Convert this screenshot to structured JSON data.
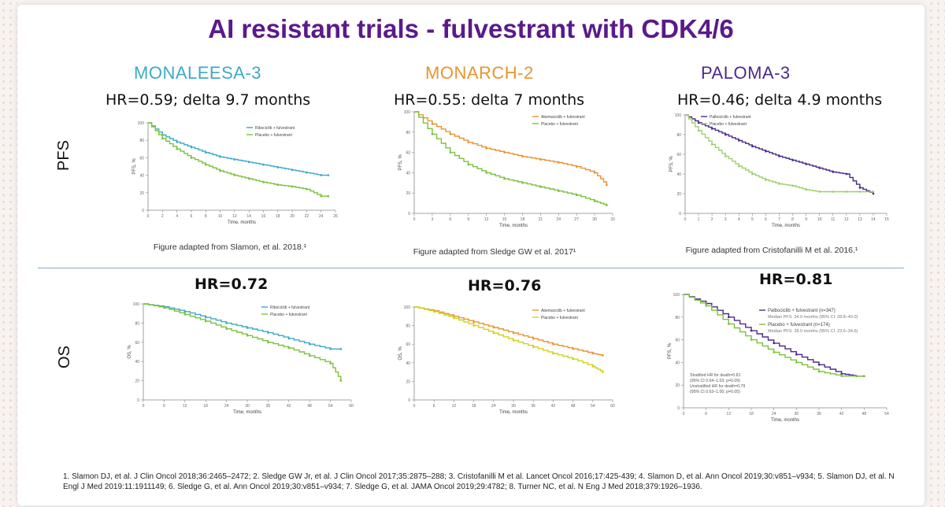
{
  "title": "AI resistant trials - fulvestrant with CDK4/6",
  "trials": [
    {
      "name": "MONALEESA-3",
      "color": "#3ea9c9"
    },
    {
      "name": "MONARCH-2",
      "color": "#e8942f"
    },
    {
      "name": "PALOMA-3",
      "color": "#4b2a8f"
    }
  ],
  "row_labels": {
    "pfs": "PFS",
    "os": "OS"
  },
  "hr": {
    "pfs": [
      "HR=0.59; delta 9.7 months",
      "HR=0.55: delta 7 months",
      "HR=0.46; delta 4.9 months"
    ],
    "os": [
      "HR=0.72",
      "HR=0.76",
      "HR=0.81"
    ]
  },
  "captions": [
    "Figure adapted from Slamon, et al. 2018.¹",
    "Figure adapted from Sledge GW et al. 2017¹",
    "Figure adapted from Cristofanilli M et al. 2016.¹"
  ],
  "axis_labels": {
    "time_months": "Time, months",
    "pfs_pct": "PFS, %",
    "os_pct": "OS, %"
  },
  "legends": {
    "paloma_os": [
      "Palbociclib + fulvestrant (n=347)",
      "Median PFS: 34.9 months (95% CI: 28.8–40.0)",
      "Placebo + fulvestrant (n=174)",
      "Median PFS: 28.0 months (95% CI: 23.6–34.6)"
    ],
    "paloma_os_notes": [
      "Stratified HR for death=0.81",
      "(95% CI 0.64–1.03; p=0.09)",
      "Unstratified HR for death=0.79",
      "(95% CI 0.63–1.00; p=0.05)"
    ]
  },
  "chart_data": [
    {
      "type": "line",
      "title": "MONALEESA-3 PFS",
      "xlabel": "Time, months",
      "ylabel": "PFS, %",
      "xlim": [
        0,
        26
      ],
      "ylim": [
        0,
        100
      ],
      "series": [
        {
          "name": "Ribociclib + fulvestrant",
          "color": "#3ea9c9",
          "x": [
            0,
            2,
            4,
            6,
            8,
            10,
            12,
            14,
            16,
            18,
            20,
            22,
            24,
            25
          ],
          "values": [
            100,
            86,
            78,
            72,
            66,
            61,
            58,
            55,
            52,
            49,
            46,
            43,
            40,
            40
          ]
        },
        {
          "name": "Placebo + fulvestrant",
          "color": "#7cc13a",
          "x": [
            0,
            2,
            4,
            6,
            8,
            10,
            12,
            14,
            16,
            18,
            20,
            22,
            24,
            25
          ],
          "values": [
            100,
            82,
            70,
            60,
            52,
            45,
            40,
            36,
            32,
            29,
            27,
            24,
            16,
            16
          ]
        }
      ]
    },
    {
      "type": "line",
      "title": "MONARCH-2 PFS",
      "xlabel": "Time, months",
      "ylabel": "PFS, %",
      "xlim": [
        0,
        33
      ],
      "ylim": [
        0,
        100
      ],
      "series": [
        {
          "name": "Abemaciclib + fulvestrant",
          "color": "#e8942f",
          "x": [
            0,
            3,
            6,
            9,
            12,
            15,
            18,
            21,
            24,
            27,
            30,
            32
          ],
          "values": [
            100,
            88,
            78,
            70,
            64,
            60,
            56,
            53,
            50,
            46,
            40,
            28
          ]
        },
        {
          "name": "Placebo + fulvestrant",
          "color": "#7cc13a",
          "x": [
            0,
            3,
            6,
            9,
            12,
            15,
            18,
            21,
            24,
            27,
            30,
            32
          ],
          "values": [
            100,
            78,
            60,
            48,
            40,
            34,
            30,
            26,
            22,
            18,
            12,
            8
          ]
        }
      ]
    },
    {
      "type": "line",
      "title": "PALOMA-3 PFS",
      "xlabel": "Time, months",
      "ylabel": "PFS, %",
      "xlim": [
        0,
        15
      ],
      "ylim": [
        0,
        100
      ],
      "series": [
        {
          "name": "Palbociclib + fulvestrant",
          "color": "#4b2a8f",
          "x": [
            0,
            1,
            2,
            3,
            4,
            5,
            6,
            7,
            8,
            9,
            10,
            11,
            12,
            13,
            14
          ],
          "values": [
            100,
            92,
            86,
            80,
            74,
            68,
            63,
            58,
            54,
            50,
            46,
            42,
            40,
            26,
            20
          ]
        },
        {
          "name": "Placebo + fulvestrant",
          "color": "#9ed06b",
          "x": [
            0,
            1,
            2,
            3,
            4,
            5,
            6,
            7,
            8,
            9,
            10,
            11,
            12,
            13,
            14
          ],
          "values": [
            100,
            84,
            70,
            58,
            48,
            40,
            34,
            30,
            28,
            24,
            22,
            22,
            22,
            22,
            22
          ]
        }
      ]
    },
    {
      "type": "line",
      "title": "MONALEESA-3 OS",
      "xlabel": "Time, months",
      "ylabel": "OS, %",
      "xlim": [
        0,
        60
      ],
      "ylim": [
        0,
        100
      ],
      "series": [
        {
          "name": "Ribociclib + fulvestrant",
          "color": "#3ea9c9",
          "x": [
            0,
            6,
            12,
            18,
            24,
            30,
            36,
            42,
            48,
            54,
            57
          ],
          "values": [
            100,
            97,
            92,
            86,
            80,
            75,
            70,
            64,
            58,
            53,
            53
          ]
        },
        {
          "name": "Placebo + fulvestrant",
          "color": "#7cc13a",
          "x": [
            0,
            6,
            12,
            18,
            24,
            30,
            36,
            42,
            48,
            54,
            57
          ],
          "values": [
            100,
            96,
            89,
            82,
            74,
            67,
            60,
            54,
            46,
            38,
            20
          ]
        }
      ]
    },
    {
      "type": "line",
      "title": "MONARCH-2 OS",
      "xlabel": "Time, months",
      "ylabel": "OS, %",
      "xlim": [
        0,
        60
      ],
      "ylim": [
        0,
        100
      ],
      "series": [
        {
          "name": "Abemaciclib + fulvestrant",
          "color": "#e8942f",
          "x": [
            0,
            6,
            12,
            18,
            24,
            30,
            36,
            42,
            48,
            54,
            57
          ],
          "values": [
            100,
            96,
            90,
            84,
            78,
            72,
            66,
            60,
            55,
            50,
            48
          ]
        },
        {
          "name": "Placebo + fulvestrant",
          "color": "#cfd21a",
          "x": [
            0,
            6,
            12,
            18,
            24,
            30,
            36,
            42,
            48,
            54,
            57
          ],
          "values": [
            100,
            95,
            88,
            80,
            72,
            64,
            57,
            50,
            44,
            36,
            30
          ]
        }
      ]
    },
    {
      "type": "line",
      "title": "PALOMA-3 OS",
      "xlabel": "Time, months",
      "ylabel": "PFS, %",
      "xlim": [
        0,
        54
      ],
      "ylim": [
        0,
        100
      ],
      "series": [
        {
          "name": "Palbociclib + fulvestrant (n=347)",
          "color": "#4b2a8f",
          "x": [
            0,
            6,
            12,
            18,
            24,
            30,
            36,
            42,
            46,
            48
          ],
          "values": [
            100,
            92,
            80,
            68,
            57,
            47,
            38,
            30,
            28,
            28
          ]
        },
        {
          "name": "Placebo + fulvestrant (n=174)",
          "color": "#7cc13a",
          "x": [
            0,
            6,
            12,
            18,
            24,
            30,
            36,
            42,
            46,
            48
          ],
          "values": [
            100,
            90,
            74,
            60,
            49,
            40,
            32,
            28,
            28,
            28
          ]
        }
      ]
    }
  ],
  "references": "1. Slamon DJ, et al. J Clin Oncol 2018;36:2465–2472; 2. Sledge GW Jr, et al. J Clin Oncol 2017;35:2875–288; 3. Cristofanilli M et al. Lancet Oncol 2016;17:425-439; 4. Slamon D, et al. Ann Oncol 2019;30:v851–v934; 5. Slamon DJ, et al. N Engl J Med 2019:11:1911149; 6. Sledge G, et al. Ann Oncol 2019;30:v851–v934; 7. Sledge G, et al. JAMA Oncol 2019;29:4782; 8. Turner NC, et al. N Eng J Med 2018;379:1926–1936."
}
